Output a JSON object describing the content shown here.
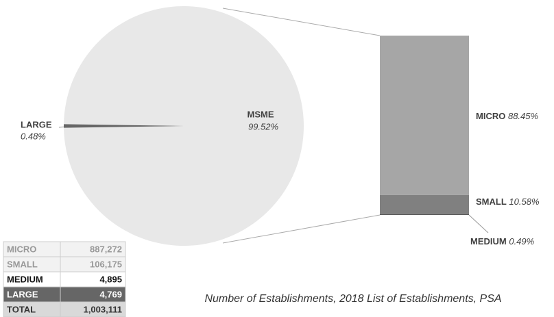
{
  "chart_data": [
    {
      "type": "pie",
      "categories": [
        "MSME",
        "LARGE"
      ],
      "values": [
        99.52,
        0.48
      ],
      "value_labels": [
        "99.52%",
        "0.48%"
      ],
      "colors": [
        "#e8e8e8",
        "#666666"
      ]
    },
    {
      "type": "bar",
      "stacked": true,
      "categories": [
        "MICRO",
        "SMALL",
        "MEDIUM"
      ],
      "values": [
        88.45,
        10.58,
        0.49
      ],
      "value_labels": [
        "88.45%",
        "10.58%",
        "0.49%"
      ],
      "colors": [
        "#a6a6a6",
        "#808080",
        "#595959"
      ]
    }
  ],
  "table": {
    "rows": [
      [
        "MICRO",
        "887,272"
      ],
      [
        "SMALL",
        "106,175"
      ],
      [
        "MEDIUM",
        "4,895"
      ],
      [
        "LARGE",
        "4,769"
      ],
      [
        "TOTAL",
        "1,003,111"
      ]
    ]
  },
  "caption": "Number of Establishments, 2018 List of Establishments, PSA"
}
